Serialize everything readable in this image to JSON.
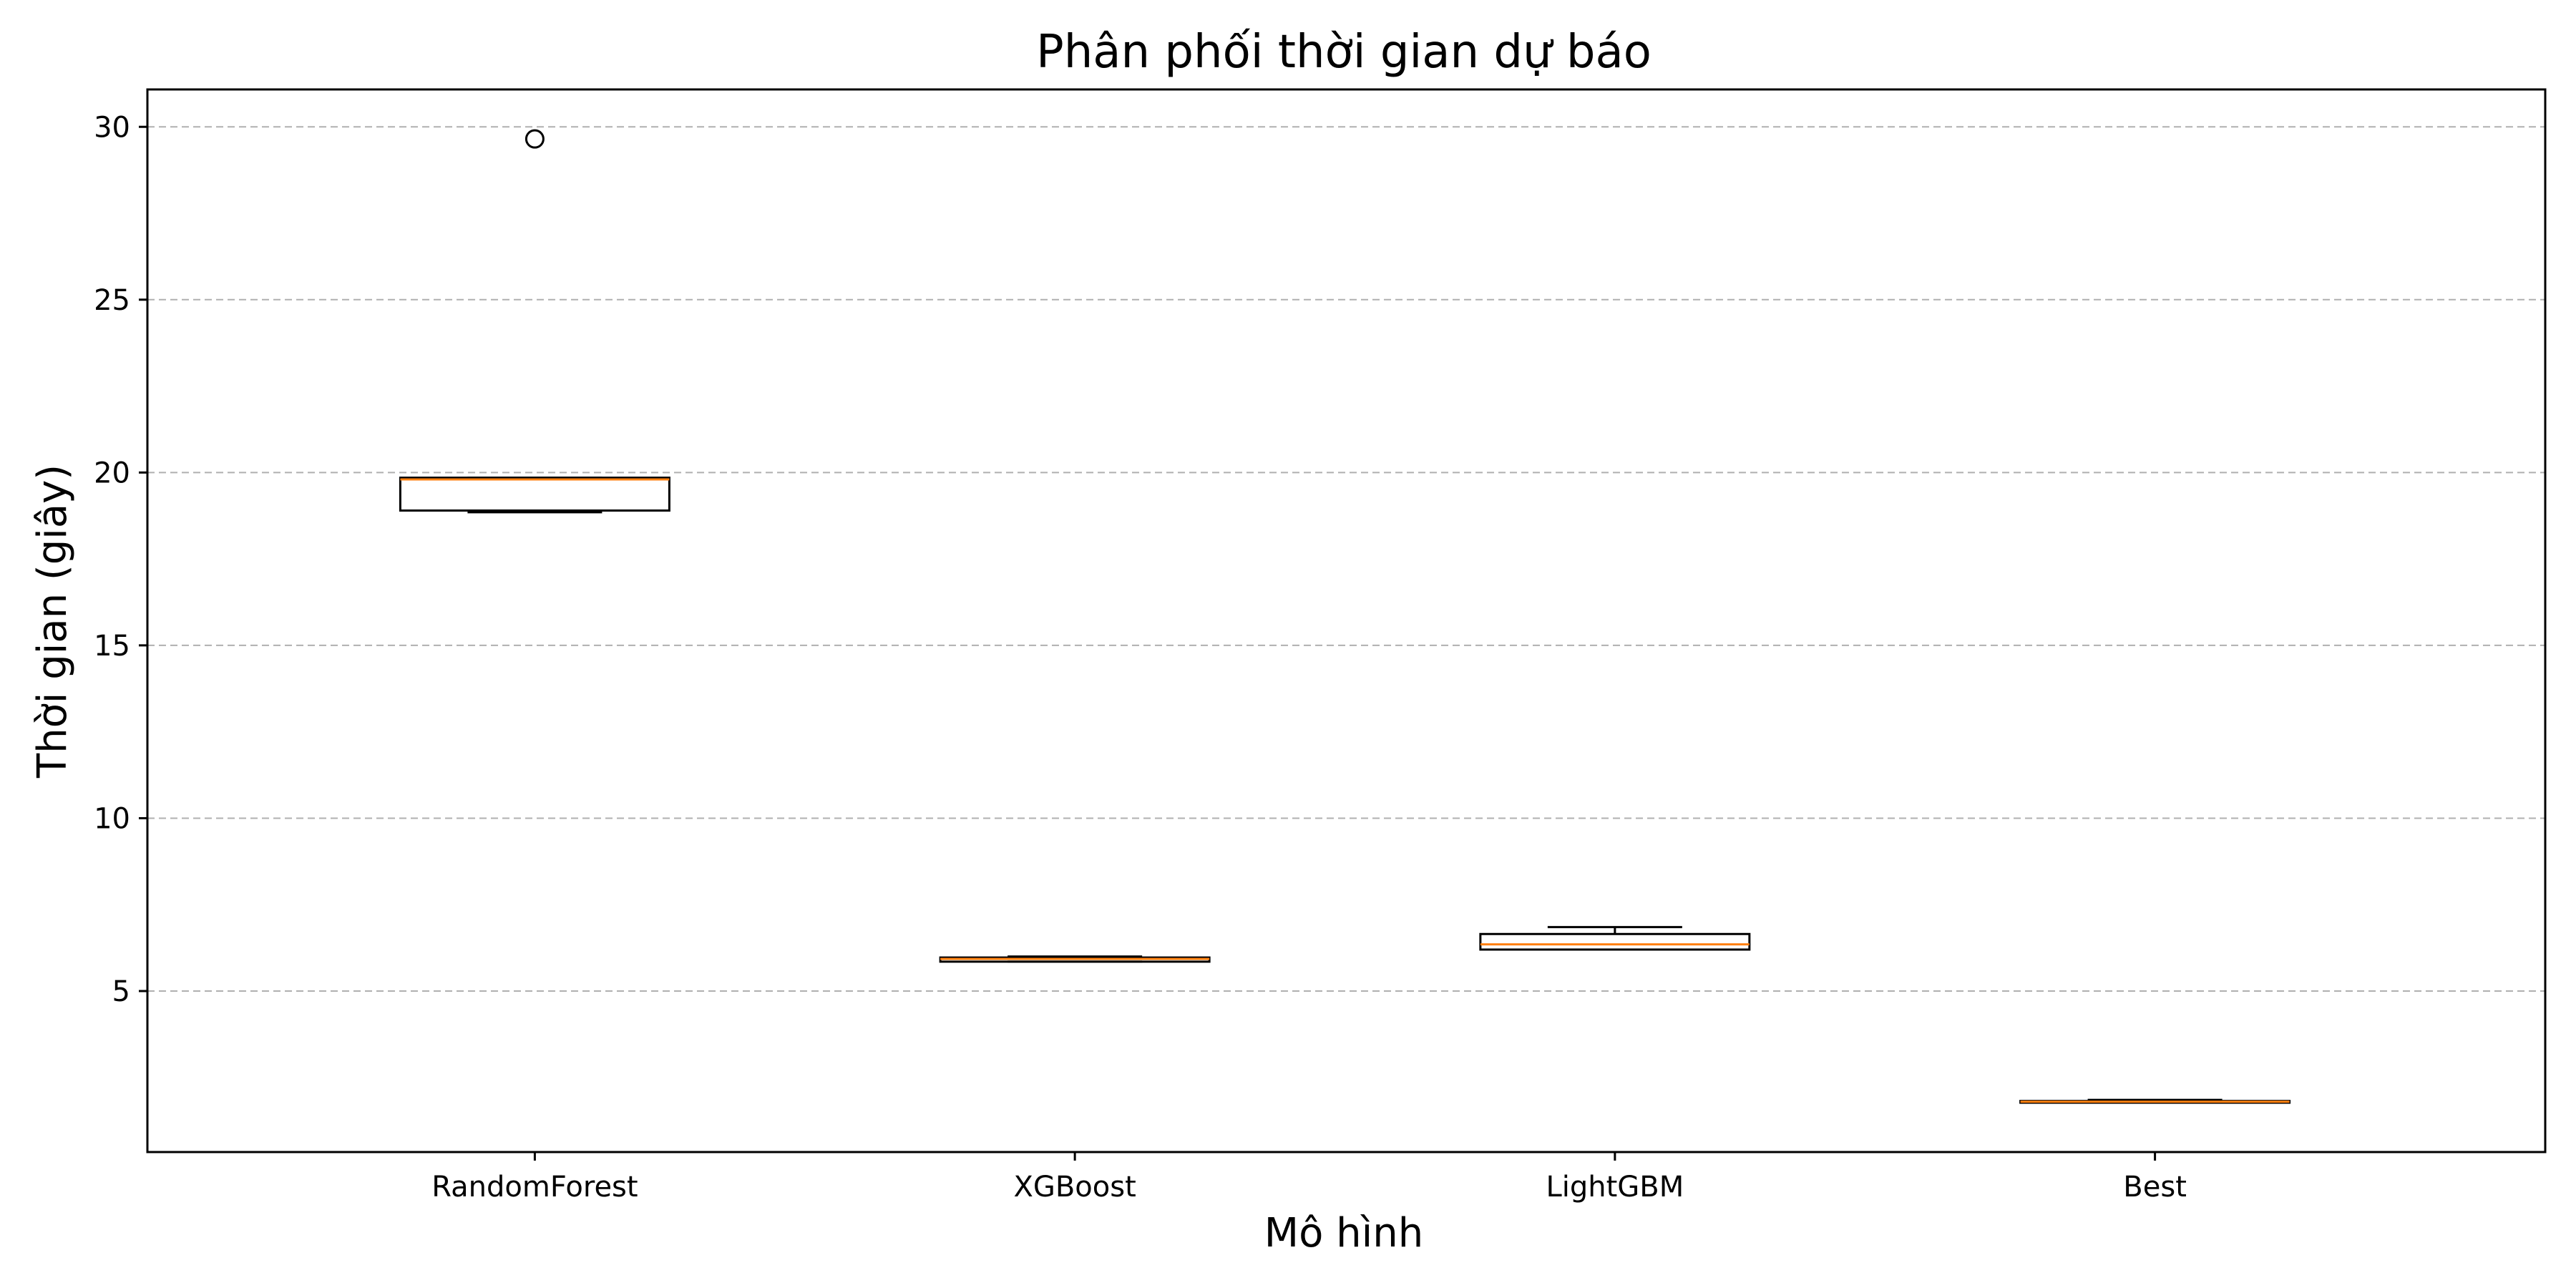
{
  "chart_data": {
    "type": "box",
    "title": "Phân phối thời gian dự báo",
    "xlabel": "Mô hình",
    "ylabel": "Thời gian (giây)",
    "ylim": [
      0.8,
      31.5
    ],
    "yticks": [
      5,
      10,
      15,
      20,
      25,
      30
    ],
    "grid": "y-dashed",
    "categories": [
      "RandomForest",
      "XGBoost",
      "LightGBM",
      "Best"
    ],
    "boxes": [
      {
        "name": "RandomForest",
        "whisker_low": 18.85,
        "q1": 18.9,
        "median": 19.8,
        "q3": 19.85,
        "whisker_high": 19.85,
        "outliers": [
          29.65
        ]
      },
      {
        "name": "XGBoost",
        "whisker_low": 5.85,
        "q1": 5.85,
        "median": 5.93,
        "q3": 5.97,
        "whisker_high": 6.0,
        "outliers": []
      },
      {
        "name": "LightGBM",
        "whisker_low": 6.2,
        "q1": 6.2,
        "median": 6.35,
        "q3": 6.65,
        "whisker_high": 6.85,
        "outliers": []
      },
      {
        "name": "Best",
        "whisker_low": 1.77,
        "q1": 1.77,
        "median": 1.8,
        "q3": 1.82,
        "whisker_high": 1.85,
        "outliers": []
      }
    ],
    "colors": {
      "box": "#000000",
      "median": "#ff7f0e",
      "grid": "#b0b0b0"
    }
  }
}
